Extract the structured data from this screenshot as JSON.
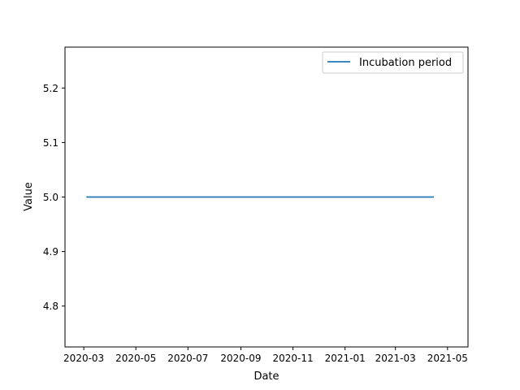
{
  "chart_data": {
    "type": "line",
    "title": "",
    "xlabel": "Date",
    "ylabel": "Value",
    "x_ticks": [
      "2020-03",
      "2020-05",
      "2020-07",
      "2020-09",
      "2020-11",
      "2021-01",
      "2021-03",
      "2021-05"
    ],
    "y_ticks": [
      "4.8",
      "4.9",
      "5.0",
      "5.1",
      "5.2"
    ],
    "xlim": [
      "2020-02-08",
      "2021-05-25"
    ],
    "ylim": [
      4.725,
      5.275
    ],
    "grid": false,
    "legend_position": "top-right",
    "series": [
      {
        "name": "Incubation period",
        "color": "#1f77b4",
        "x": [
          "2020-03-04",
          "2021-04-15"
        ],
        "y": [
          5.0,
          5.0
        ]
      }
    ]
  }
}
